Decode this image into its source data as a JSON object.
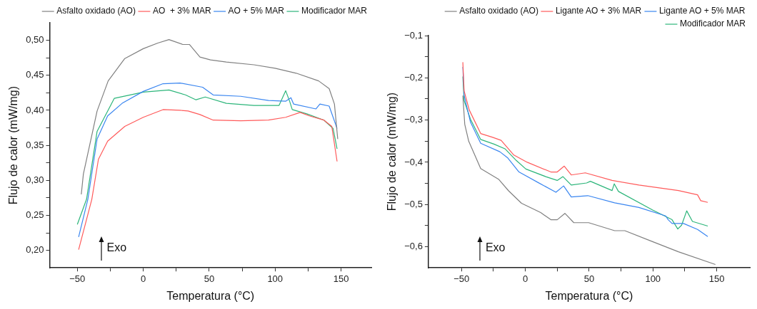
{
  "chart_data": [
    {
      "type": "line",
      "xlabel": "Temperatura (°C)",
      "ylabel": "Flujo de calor (mW/mg)",
      "annotations": [
        "Exo"
      ],
      "legend": "top right",
      "grid": false,
      "marker": "none",
      "line_style": "solid",
      "xlim": [
        -71,
        173
      ],
      "xticks": [
        {
          "value": -50,
          "label": "−50"
        },
        {
          "value": -25,
          "label": null
        },
        {
          "value": 0,
          "label": "0"
        },
        {
          "value": 25,
          "label": null
        },
        {
          "value": 50,
          "label": "50"
        },
        {
          "value": 75,
          "label": null
        },
        {
          "value": 100,
          "label": "100"
        },
        {
          "value": 125,
          "label": null
        },
        {
          "value": 150,
          "label": "150"
        }
      ],
      "ylim": [
        0.175,
        0.525
      ],
      "yticks": [
        {
          "value": 0.2,
          "label": "0,20"
        },
        {
          "value": 0.225,
          "label": null
        },
        {
          "value": 0.25,
          "label": "0,25"
        },
        {
          "value": 0.275,
          "label": null
        },
        {
          "value": 0.3,
          "label": "0,30"
        },
        {
          "value": 0.325,
          "label": null
        },
        {
          "value": 0.35,
          "label": "0,35"
        },
        {
          "value": 0.375,
          "label": null
        },
        {
          "value": 0.4,
          "label": "0,40"
        },
        {
          "value": 0.425,
          "label": null
        },
        {
          "value": 0.45,
          "label": "0,45"
        },
        {
          "value": 0.475,
          "label": null
        },
        {
          "value": 0.5,
          "label": "0,50"
        }
      ],
      "series": [
        {
          "name": "Asfalto oxidado (AO)",
          "color": "#808080",
          "x": [
            -47,
            -45.4,
            -35,
            -26.6,
            -14,
            0,
            11,
            19.5,
            30,
            35,
            43,
            51,
            63,
            84,
            100,
            116,
            133,
            141,
            145,
            147.5
          ],
          "values": [
            0.28,
            0.309,
            0.399,
            0.442,
            0.474,
            0.488,
            0.496,
            0.501,
            0.494,
            0.494,
            0.476,
            0.472,
            0.469,
            0.465,
            0.46,
            0.453,
            0.442,
            0.431,
            0.409,
            0.359
          ]
        },
        {
          "name": "AO  + 3% MAR",
          "color": "#ff5a5a",
          "x": [
            -49,
            -39,
            -34,
            -27,
            -14,
            0,
            15,
            28,
            34,
            43,
            53,
            74,
            95,
            108,
            119,
            126,
            137,
            143,
            147
          ],
          "values": [
            0.201,
            0.273,
            0.33,
            0.356,
            0.377,
            0.39,
            0.401,
            0.4,
            0.399,
            0.394,
            0.386,
            0.385,
            0.386,
            0.39,
            0.397,
            0.392,
            0.386,
            0.377,
            0.327
          ]
        },
        {
          "name": "AO + 5% MAR",
          "color": "#3a86f0",
          "x": [
            -49,
            -42,
            -35,
            -27,
            -16,
            0,
            15,
            28,
            45,
            53,
            74,
            95,
            108,
            112,
            114,
            131,
            134,
            141,
            147
          ],
          "values": [
            0.219,
            0.273,
            0.359,
            0.392,
            0.41,
            0.427,
            0.438,
            0.439,
            0.433,
            0.422,
            0.42,
            0.414,
            0.413,
            0.418,
            0.409,
            0.402,
            0.409,
            0.406,
            0.374
          ]
        },
        {
          "name": "Modificador MAR",
          "color": "#2cb57a",
          "x": [
            -50,
            -43,
            -35,
            -22,
            -10,
            0,
            19.5,
            32,
            40,
            47,
            63,
            84,
            103,
            108,
            111,
            113,
            124,
            137,
            144,
            147
          ],
          "values": [
            0.237,
            0.273,
            0.37,
            0.417,
            0.422,
            0.426,
            0.429,
            0.422,
            0.415,
            0.419,
            0.41,
            0.407,
            0.407,
            0.428,
            0.413,
            0.401,
            0.395,
            0.386,
            0.374,
            0.345
          ]
        }
      ]
    },
    {
      "type": "line",
      "xlabel": "Temperatura (°C)",
      "ylabel": "Flujo de calor (mW/mg)",
      "annotations": [
        "Exo"
      ],
      "legend": "top right",
      "grid": false,
      "marker": "none",
      "line_style": "solid",
      "xlim": [
        -76,
        176
      ],
      "xticks": [
        {
          "value": -50,
          "label": "−50"
        },
        {
          "value": -25,
          "label": null
        },
        {
          "value": 0,
          "label": "0"
        },
        {
          "value": 25,
          "label": null
        },
        {
          "value": 50,
          "label": "50"
        },
        {
          "value": 75,
          "label": null
        },
        {
          "value": 100,
          "label": "100"
        },
        {
          "value": 125,
          "label": null
        },
        {
          "value": 150,
          "label": "150"
        }
      ],
      "ylim": [
        -0.65,
        -0.1
      ],
      "yticks": [
        {
          "value": -0.6,
          "label": "−0,6"
        },
        {
          "value": -0.55,
          "label": null
        },
        {
          "value": -0.5,
          "label": "−0,5"
        },
        {
          "value": -0.45,
          "label": null
        },
        {
          "value": -0.4,
          "label": "−0,4"
        },
        {
          "value": -0.35,
          "label": null
        },
        {
          "value": -0.3,
          "label": "−0,3"
        },
        {
          "value": -0.25,
          "label": null
        },
        {
          "value": -0.2,
          "label": "−0,2"
        },
        {
          "value": -0.15,
          "label": null
        },
        {
          "value": -0.1,
          "label": "−0,1"
        }
      ],
      "series": [
        {
          "name": "Asfalto oxidado (AO)",
          "color": "#808080",
          "x": [
            -49,
            -47.5,
            -44.4,
            -35,
            -21,
            -13,
            -3,
            12,
            20,
            25,
            31,
            38,
            49.6,
            70,
            78,
            99,
            120,
            149
          ],
          "values": [
            -0.242,
            -0.31,
            -0.35,
            -0.415,
            -0.44,
            -0.468,
            -0.497,
            -0.519,
            -0.536,
            -0.536,
            -0.521,
            -0.543,
            -0.543,
            -0.562,
            -0.562,
            -0.587,
            -0.612,
            -0.642
          ]
        },
        {
          "name": "Ligante AO + 3% MAR",
          "color": "#ff5a5a",
          "x": [
            -49,
            -48,
            -44,
            -35,
            -25.6,
            -19,
            -9,
            1.5,
            20,
            25,
            30.5,
            36,
            47,
            68,
            89,
            120,
            135,
            137.5,
            143
          ],
          "values": [
            -0.163,
            -0.231,
            -0.276,
            -0.332,
            -0.341,
            -0.348,
            -0.383,
            -0.4,
            -0.423,
            -0.423,
            -0.409,
            -0.43,
            -0.425,
            -0.443,
            -0.454,
            -0.467,
            -0.477,
            -0.491,
            -0.495
          ]
        },
        {
          "name": "Ligante AO + 5% MAR",
          "color": "#3a86f0",
          "x": [
            -49,
            -48,
            -43,
            -35,
            -20,
            -14,
            -5,
            10,
            24,
            30,
            36,
            49,
            70,
            89,
            110,
            112,
            115,
            124,
            135,
            143
          ],
          "values": [
            -0.174,
            -0.242,
            -0.305,
            -0.355,
            -0.375,
            -0.389,
            -0.423,
            -0.448,
            -0.471,
            -0.456,
            -0.482,
            -0.479,
            -0.496,
            -0.507,
            -0.527,
            -0.536,
            -0.545,
            -0.545,
            -0.559,
            -0.576
          ]
        },
        {
          "name": "Modificador MAR",
          "color": "#2cb57a",
          "x": [
            -49,
            -48,
            -43,
            -35,
            -24.6,
            -16,
            -7,
            0.4,
            16,
            25,
            29.5,
            36,
            48,
            51,
            68,
            69.7,
            73,
            99.8,
            115,
            119.5,
            122.5,
            126.5,
            131,
            143
          ],
          "values": [
            -0.197,
            -0.254,
            -0.298,
            -0.346,
            -0.357,
            -0.368,
            -0.396,
            -0.416,
            -0.434,
            -0.443,
            -0.434,
            -0.454,
            -0.449,
            -0.445,
            -0.467,
            -0.451,
            -0.469,
            -0.513,
            -0.536,
            -0.558,
            -0.549,
            -0.515,
            -0.54,
            -0.551
          ]
        }
      ]
    }
  ]
}
